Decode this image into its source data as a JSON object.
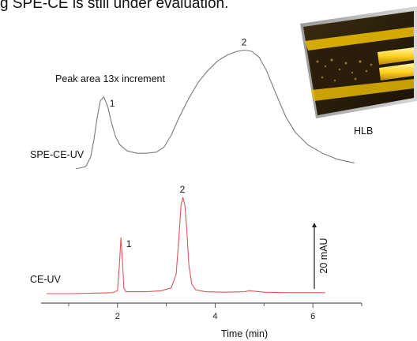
{
  "caption": "g SPE-CE is still under evaluation.",
  "inset": {
    "label": "HLB"
  },
  "chart_data": {
    "type": "line",
    "xlabel": "Time (min)",
    "xlim": [
      0.5,
      7.0
    ],
    "x_ticks": [
      2,
      4,
      6
    ],
    "annotation": "Peak area 13x increment",
    "scale_bar_label": "20 mAU",
    "series": [
      {
        "name": "SPE-CE-UV",
        "color": "#7a7a7a",
        "x": [
          1.15,
          1.35,
          1.45,
          1.52,
          1.58,
          1.65,
          1.72,
          1.8,
          1.88,
          1.96,
          2.05,
          2.2,
          2.4,
          2.6,
          2.8,
          2.95,
          3.1,
          3.25,
          3.45,
          3.65,
          3.85,
          4.05,
          4.25,
          4.45,
          4.6,
          4.75,
          4.9,
          5.05,
          5.25,
          5.45,
          5.65,
          5.9,
          6.2,
          6.5,
          6.85
        ],
        "y": [
          0.0,
          0.02,
          0.1,
          0.25,
          0.42,
          0.57,
          0.6,
          0.52,
          0.38,
          0.27,
          0.2,
          0.15,
          0.13,
          0.13,
          0.14,
          0.18,
          0.28,
          0.42,
          0.58,
          0.72,
          0.82,
          0.9,
          0.95,
          0.98,
          0.99,
          0.98,
          0.93,
          0.82,
          0.62,
          0.43,
          0.3,
          0.2,
          0.13,
          0.08,
          0.05
        ],
        "peaks": [
          {
            "label": "1",
            "x": 1.74,
            "y": 0.6
          },
          {
            "label": "2",
            "x": 4.6,
            "y": 0.99
          }
        ]
      },
      {
        "name": "CE-UV",
        "color": "#e2555a",
        "x": [
          0.55,
          1.0,
          1.5,
          1.9,
          2.0,
          2.04,
          2.07,
          2.1,
          2.13,
          2.17,
          2.3,
          2.6,
          2.9,
          3.1,
          3.2,
          3.26,
          3.3,
          3.34,
          3.38,
          3.42,
          3.46,
          3.52,
          3.6,
          3.8,
          4.2,
          4.6,
          4.7,
          5.0,
          5.5,
          6.0,
          6.25
        ],
        "y": [
          0.0,
          0.0,
          0.005,
          0.01,
          0.03,
          0.3,
          0.58,
          0.35,
          0.06,
          0.02,
          0.02,
          0.02,
          0.03,
          0.06,
          0.2,
          0.6,
          0.92,
          1.0,
          0.92,
          0.65,
          0.3,
          0.1,
          0.04,
          0.02,
          0.015,
          0.02,
          0.03,
          0.015,
          0.01,
          0.01,
          0.01
        ],
        "peaks": [
          {
            "label": "1",
            "x": 2.08,
            "y": 0.58
          },
          {
            "label": "2",
            "x": 3.34,
            "y": 1.0
          }
        ]
      }
    ]
  }
}
